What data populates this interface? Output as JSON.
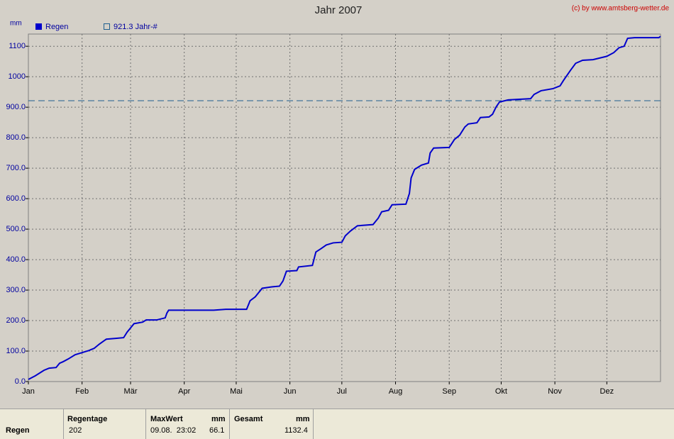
{
  "chart_data": {
    "type": "line",
    "title": "Jahr 2007",
    "credit": "(c) by www.amtsberg-wetter.de",
    "y_unit": "mm",
    "xlim": [
      0,
      365
    ],
    "xticks": [
      {
        "value": 0,
        "label": "Jan"
      },
      {
        "value": 31,
        "label": "Feb"
      },
      {
        "value": 59,
        "label": "Mär"
      },
      {
        "value": 90,
        "label": "Apr"
      },
      {
        "value": 120,
        "label": "Mai"
      },
      {
        "value": 151,
        "label": "Jun"
      },
      {
        "value": 181,
        "label": "Jul"
      },
      {
        "value": 212,
        "label": "Aug"
      },
      {
        "value": 243,
        "label": "Sep"
      },
      {
        "value": 273,
        "label": "Okt"
      },
      {
        "value": 304,
        "label": "Nov"
      },
      {
        "value": 334,
        "label": "Dez"
      }
    ],
    "ylim": [
      0,
      1140
    ],
    "yticks": [
      {
        "value": 0,
        "label": "0.0"
      },
      {
        "value": 100,
        "label": "100.0"
      },
      {
        "value": 200,
        "label": "200.0"
      },
      {
        "value": 300,
        "label": "300.0"
      },
      {
        "value": 400,
        "label": "400.0"
      },
      {
        "value": 500,
        "label": "500.0"
      },
      {
        "value": 600,
        "label": "600.0"
      },
      {
        "value": 700,
        "label": "700.0"
      },
      {
        "value": 800,
        "label": "800.0"
      },
      {
        "value": 900,
        "label": "900.0"
      },
      1000,
      1100
    ],
    "grid": true,
    "series": [
      {
        "name": "Regen",
        "color": "#0000cc",
        "x": [
          0,
          4,
          9,
          12,
          16,
          18,
          20,
          23,
          25,
          27,
          31,
          35,
          38,
          41,
          44,
          45,
          51,
          55,
          57,
          59,
          61,
          66,
          68,
          74,
          79,
          80,
          81,
          107,
          114,
          126,
          128,
          131,
          135,
          141,
          145,
          147,
          149,
          155,
          156,
          164,
          166,
          169,
          172,
          176,
          181,
          183,
          186,
          190,
          199,
          202,
          204,
          208,
          210,
          218,
          220,
          221,
          223,
          227,
          231,
          232,
          234,
          243,
          246,
          249,
          252,
          254,
          259,
          261,
          266,
          268,
          270,
          272,
          277,
          290,
          292,
          296,
          303,
          307,
          309,
          313,
          316,
          320,
          326,
          334,
          338,
          341,
          344,
          346,
          350,
          364,
          365
        ],
        "values": [
          7,
          19,
          37,
          44,
          46,
          60,
          65,
          74,
          81,
          88,
          95,
          102,
          109,
          123,
          135,
          139,
          142,
          144,
          162,
          176,
          190,
          195,
          202,
          202,
          209,
          225,
          234,
          234,
          237,
          237,
          265,
          278,
          306,
          311,
          313,
          330,
          362,
          364,
          376,
          381,
          425,
          436,
          448,
          455,
          457,
          478,
          494,
          511,
          515,
          536,
          557,
          562,
          580,
          582,
          617,
          668,
          696,
          710,
          717,
          750,
          766,
          768,
          794,
          808,
          835,
          845,
          849,
          866,
          868,
          877,
          900,
          917,
          924,
          928,
          942,
          954,
          961,
          970,
          988,
          1021,
          1044,
          1054,
          1056,
          1067,
          1079,
          1095,
          1100,
          1126,
          1128,
          1128,
          1132.4
        ]
      }
    ],
    "reference_line": {
      "name": "921.3 Jahr-#",
      "value": 921.3,
      "color": "#1f5f8f"
    }
  },
  "summary": {
    "row_label": "Regen",
    "regentage": {
      "label": "Regentage",
      "value": 202
    },
    "maxwert": {
      "label": "MaxWert",
      "unit": "mm",
      "date": "09.08.  23:02",
      "value": 66.1
    },
    "gesamt": {
      "label": "Gesamt",
      "unit": "mm",
      "value": 1132.4
    }
  }
}
